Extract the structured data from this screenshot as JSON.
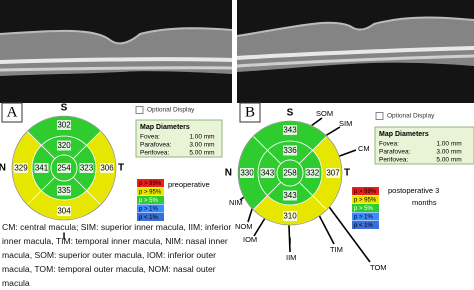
{
  "panels": [
    {
      "label": "A",
      "optional_display": "Optional Display",
      "map_diameters": {
        "title": "Map Diameters",
        "rows": [
          [
            "Fovea:",
            "1.00 mm"
          ],
          [
            "Parafovea:",
            "3.00 mm"
          ],
          [
            "Perifovea:",
            "5.00 mm"
          ]
        ]
      },
      "orientation": {
        "top": "S",
        "bottom": "I",
        "left": "N",
        "right": "T"
      },
      "sectors": {
        "center": {
          "value": 254,
          "color": "#2ecc2e"
        },
        "inner_superior": {
          "value": 320,
          "color": "#2ecc2e"
        },
        "inner_nasal": {
          "value": 341,
          "color": "#2ecc2e"
        },
        "inner_temporal": {
          "value": 323,
          "color": "#2ecc2e"
        },
        "inner_inferior": {
          "value": 335,
          "color": "#2ecc2e"
        },
        "outer_superior": {
          "value": 302,
          "color": "#2ecc2e"
        },
        "outer_nasal": {
          "value": 329,
          "color": "#e6e600"
        },
        "outer_temporal": {
          "value": 306,
          "color": "#e6e600"
        },
        "outer_inferior": {
          "value": 304,
          "color": "#e6e600"
        }
      },
      "legend": [
        {
          "text": "p > 99%",
          "color": "#e8201c"
        },
        {
          "text": "p > 95%",
          "color": "#e6e600"
        },
        {
          "text": "p > 5%",
          "color": "#2ecc2e"
        },
        {
          "text": "p > 1%",
          "color": "#3a8bff"
        },
        {
          "text": "p < 1%",
          "color": "#3a6fd8"
        }
      ],
      "legend_caption": "preoperative"
    },
    {
      "label": "B",
      "optional_display": "Optional Display",
      "map_diameters": {
        "title": "Map Diameters",
        "rows": [
          [
            "Fovea:",
            "1.00 mm"
          ],
          [
            "Parafovea:",
            "3.00 mm"
          ],
          [
            "Perifovea:",
            "5.00 mm"
          ]
        ]
      },
      "orientation": {
        "top": "S",
        "bottom": "I",
        "left": "N",
        "right": "T"
      },
      "sectors": {
        "center": {
          "value": 258,
          "color": "#2ecc2e"
        },
        "inner_superior": {
          "value": 336,
          "color": "#2ecc2e"
        },
        "inner_nasal": {
          "value": 343,
          "color": "#2ecc2e"
        },
        "inner_temporal": {
          "value": 332,
          "color": "#2ecc2e"
        },
        "inner_inferior": {
          "value": 343,
          "color": "#2ecc2e"
        },
        "outer_superior": {
          "value": 343,
          "color": "#2ecc2e"
        },
        "outer_nasal": {
          "value": 330,
          "color": "#2ecc2e"
        },
        "outer_temporal": {
          "value": 307,
          "color": "#e6e600"
        },
        "outer_inferior": {
          "value": 310,
          "color": "#e6e600"
        }
      },
      "legend": [
        {
          "text": "p > 99%",
          "color": "#e8201c"
        },
        {
          "text": "p > 95%",
          "color": "#e6e600"
        },
        {
          "text": "p > 5%",
          "color": "#2ecc2e"
        },
        {
          "text": "p > 1%",
          "color": "#3a8bff"
        },
        {
          "text": "p < 1%",
          "color": "#3a6fd8"
        }
      ],
      "legend_caption": "postoperative 3 months",
      "annotations": [
        "SOM",
        "SIM",
        "CM",
        "NIM",
        "NOM",
        "IOM",
        "IIM",
        "TIM",
        "TOM"
      ]
    }
  ],
  "caption": "CM: central macula; SIM: superior inner macula, IIM: inferior inner macula, TIM: temporal inner macula, NIM: nasal inner macula, SOM: superior outer macula, IOM: inferior outer macula, TOM: temporal outer macula, NOM: nasal outer macula"
}
